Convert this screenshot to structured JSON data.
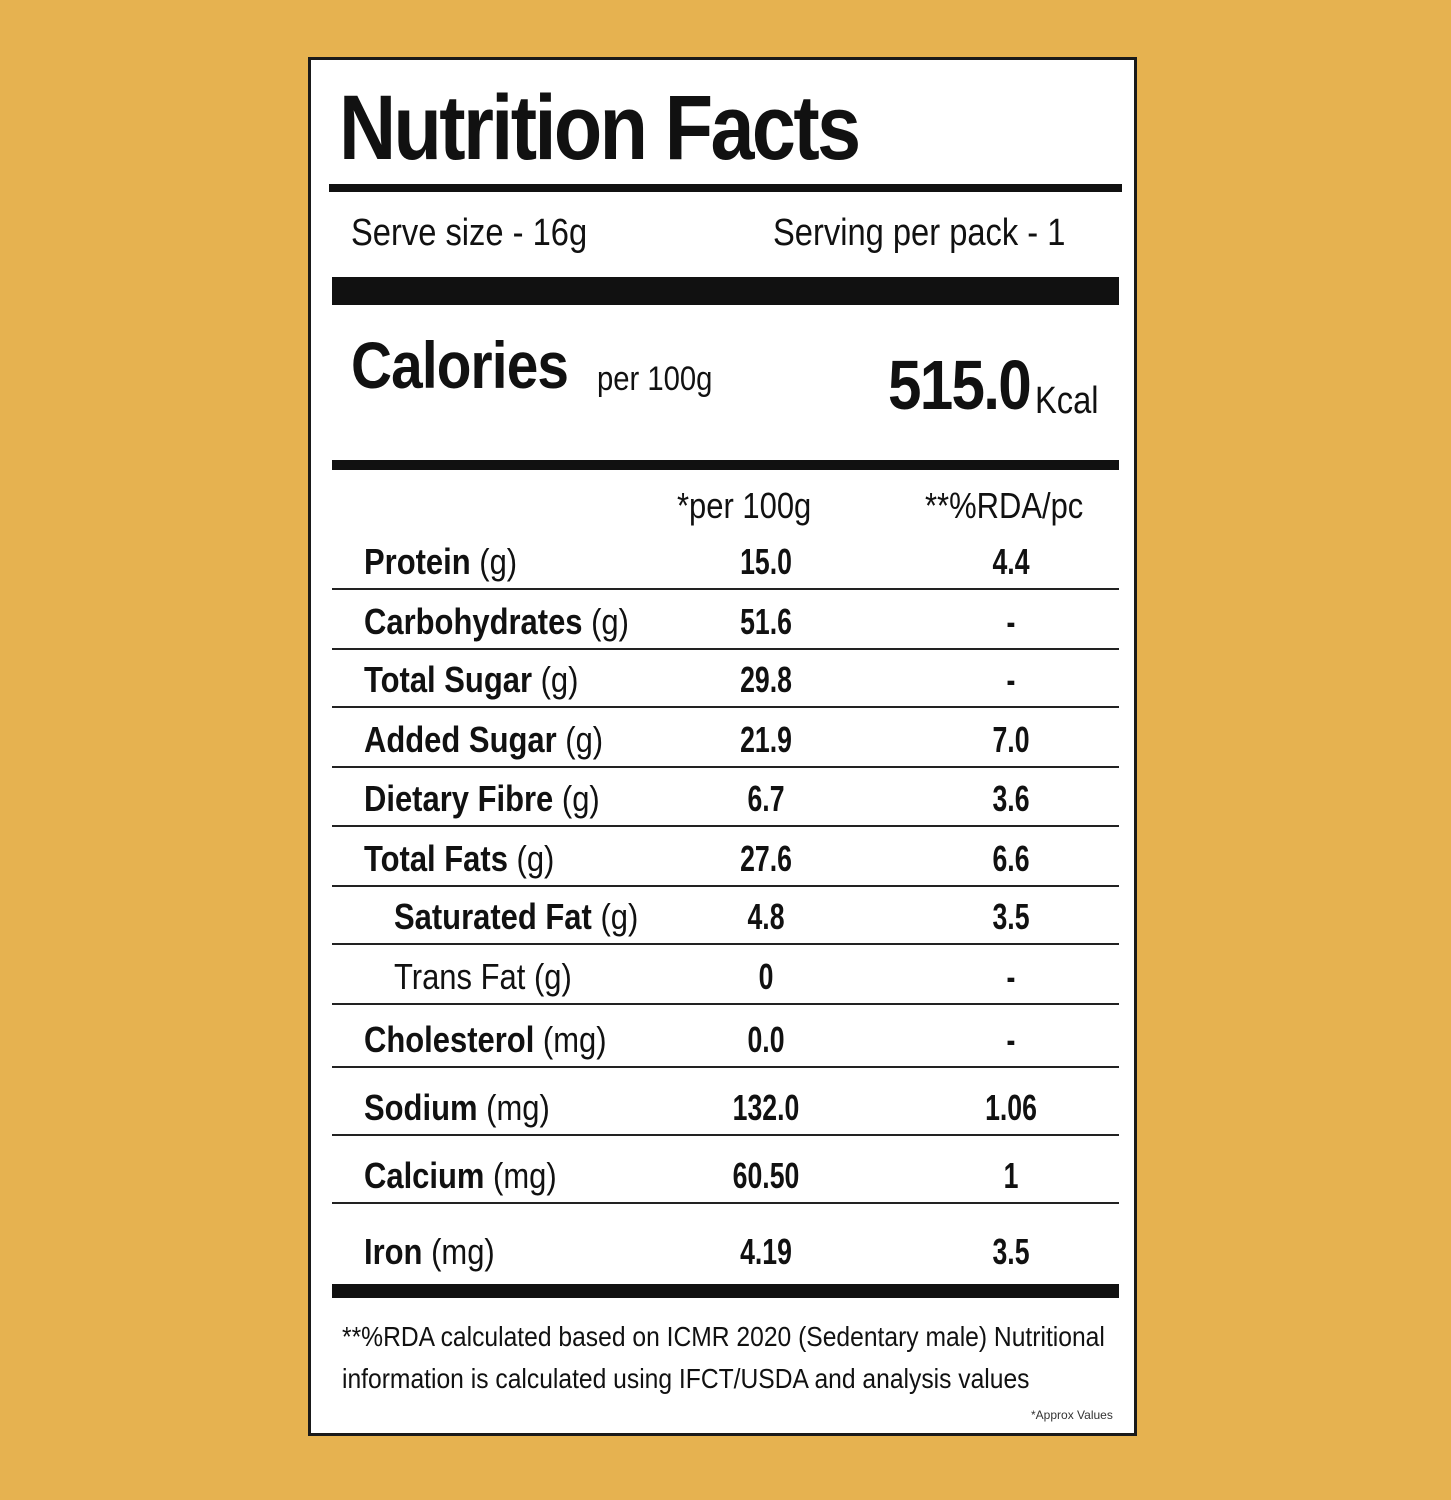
{
  "title": "Nutrition Facts",
  "serving": {
    "serve_size": "Serve size - 16g",
    "servings_per_pack": "Serving per pack - 1"
  },
  "calories": {
    "label": "Calories",
    "basis": "per 100g",
    "value": "515.0",
    "unit": "Kcal"
  },
  "columns": {
    "per100": "*per 100g",
    "rda": "**%RDA/pc"
  },
  "nutrients": [
    {
      "name": "Protein",
      "unit": "(g)",
      "per100": "15.0",
      "rda": "4.4"
    },
    {
      "name": "Carbohydrates",
      "unit": "(g)",
      "per100": "51.6",
      "rda": "-"
    },
    {
      "name": "Total Sugar",
      "unit": "(g)",
      "per100": "29.8",
      "rda": "-"
    },
    {
      "name": "Added Sugar",
      "unit": "(g)",
      "per100": "21.9",
      "rda": "7.0"
    },
    {
      "name": "Dietary Fibre",
      "unit": "(g)",
      "per100": "6.7",
      "rda": "3.6"
    },
    {
      "name": "Total Fats",
      "unit": "(g)",
      "per100": "27.6",
      "rda": "6.6"
    },
    {
      "name": "Saturated Fat",
      "unit": "(g)",
      "per100": "4.8",
      "rda": "3.5"
    },
    {
      "name": "Trans Fat",
      "unit": "(g)",
      "per100": "0",
      "rda": "-"
    },
    {
      "name": "Cholesterol",
      "unit": "(mg)",
      "per100": "0.0",
      "rda": "-"
    },
    {
      "name": "Sodium",
      "unit": "(mg)",
      "per100": "132.0",
      "rda": "1.06"
    },
    {
      "name": "Calcium",
      "unit": "(mg)",
      "per100": "60.50",
      "rda": "1"
    },
    {
      "name": "Iron",
      "unit": "(mg)",
      "per100": "4.19",
      "rda": "3.5"
    }
  ],
  "footnote": "**%RDA calculated based on ICMR 2020 (Sedentary male) Nutritional information is calculated using IFCT/USDA and analysis values",
  "approx_note": "*Approx Values"
}
